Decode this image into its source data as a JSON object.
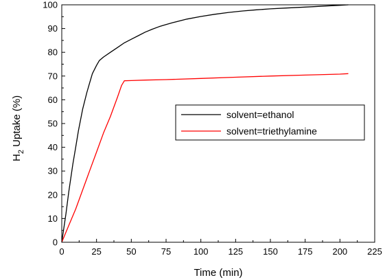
{
  "chart_data": {
    "type": "line",
    "xlabel": "Time (min)",
    "ylabel": {
      "main": "H",
      "sub": "2",
      "rest": " Uptake (%)"
    },
    "xlim": [
      0,
      225
    ],
    "ylim": [
      0,
      100
    ],
    "xticks": [
      "0",
      "25",
      "50",
      "75",
      "100",
      "125",
      "150",
      "175",
      "200",
      "225"
    ],
    "yticks": [
      "0",
      "10",
      "20",
      "30",
      "40",
      "50",
      "60",
      "70",
      "80",
      "90",
      "100"
    ],
    "grid": false,
    "legend_position": "center-right",
    "series": [
      {
        "name": "solvent=ethanol",
        "color": "#000000",
        "x": [
          0,
          1,
          3,
          5,
          8,
          10,
          12,
          15,
          18,
          20,
          22,
          25,
          27,
          30,
          35,
          40,
          45,
          50,
          55,
          60,
          65,
          70,
          75,
          80,
          90,
          100,
          110,
          120,
          130,
          140,
          150,
          160,
          170,
          180,
          190,
          200,
          206
        ],
        "y": [
          0,
          4,
          12,
          21,
          33,
          40,
          47,
          56,
          63,
          67,
          71,
          74.5,
          76.5,
          78,
          80,
          82,
          84,
          85.5,
          87,
          88.5,
          89.7,
          90.8,
          91.7,
          92.5,
          94,
          95.1,
          96,
          96.8,
          97.4,
          97.9,
          98.3,
          98.6,
          98.9,
          99.2,
          99.5,
          99.8,
          100
        ]
      },
      {
        "name": "solvent=triethylamine",
        "color": "#ff0000",
        "x": [
          0,
          5,
          10,
          15,
          20,
          25,
          30,
          35,
          40,
          43,
          45,
          50,
          60,
          75,
          100,
          125,
          150,
          175,
          200,
          206
        ],
        "y": [
          0,
          7,
          14,
          22,
          30,
          38,
          46,
          53,
          61,
          66,
          68,
          68.1,
          68.3,
          68.5,
          69,
          69.5,
          70,
          70.4,
          70.8,
          71
        ]
      }
    ]
  }
}
